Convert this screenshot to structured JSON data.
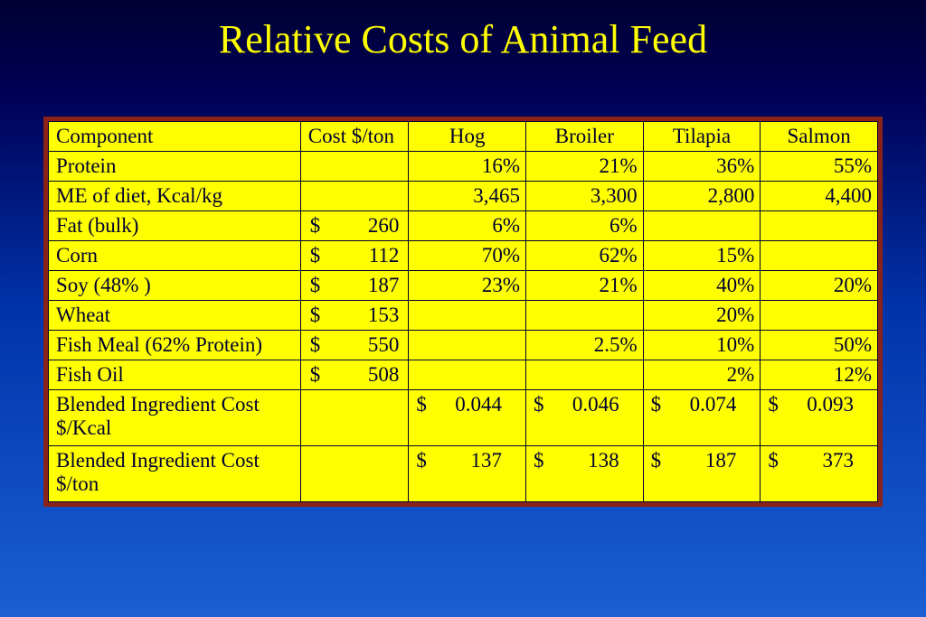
{
  "title": "Relative Costs of Animal Feed",
  "table": {
    "type": "table",
    "background_color": "#ffff00",
    "border_color": "#000033",
    "outer_border_color": "#8b2218",
    "text_color": "#000033",
    "title_color": "#ffff00",
    "font_family": "Times New Roman",
    "header_fontsize": 23,
    "cell_fontsize": 23,
    "columns": [
      "Component",
      "Cost $/ton",
      "Hog",
      "Broiler",
      "Tilapia",
      "Salmon"
    ],
    "rows": [
      {
        "component": "Protein",
        "cost": "",
        "hog": "16%",
        "broiler": "21%",
        "tilapia": "36%",
        "salmon": "55%"
      },
      {
        "component": "ME of diet, Kcal/kg",
        "cost": "",
        "hog": "3,465",
        "broiler": "3,300",
        "tilapia": "2,800",
        "salmon": "4,400"
      },
      {
        "component": "Fat (bulk)",
        "cost": "260",
        "hog": "6%",
        "broiler": "6%",
        "tilapia": "",
        "salmon": ""
      },
      {
        "component": "Corn",
        "cost": "112",
        "hog": "70%",
        "broiler": "62%",
        "tilapia": "15%",
        "salmon": ""
      },
      {
        "component": "Soy (48% )",
        "cost": "187",
        "hog": "23%",
        "broiler": "21%",
        "tilapia": "40%",
        "salmon": "20%"
      },
      {
        "component": "Wheat",
        "cost": "153",
        "hog": "",
        "broiler": "",
        "tilapia": "20%",
        "salmon": ""
      },
      {
        "component": "Fish Meal (62% Protein)",
        "cost": "550",
        "hog": "",
        "broiler": "2.5%",
        "tilapia": "10%",
        "salmon": "50%"
      },
      {
        "component": "Fish Oil",
        "cost": "508",
        "hog": "",
        "broiler": "",
        "tilapia": "2%",
        "salmon": "12%"
      }
    ],
    "blended_kcal": {
      "label": "Blended Ingredient Cost $/Kcal",
      "hog": "0.044",
      "broiler": "0.046",
      "tilapia": "0.074",
      "salmon": "0.093"
    },
    "blended_ton": {
      "label": "Blended Ingredient Cost $/ton",
      "hog": "137",
      "broiler": "138",
      "tilapia": "187",
      "salmon": "373"
    }
  }
}
